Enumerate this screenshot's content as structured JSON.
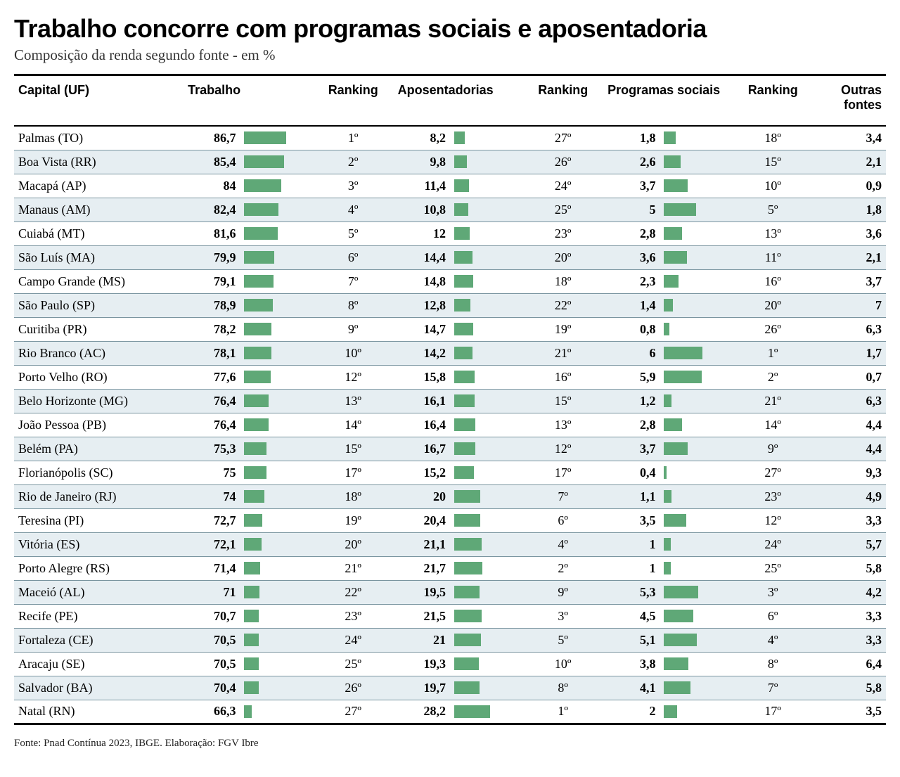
{
  "title": "Trabalho concorre com programas sociais e aposentadoria",
  "subtitle": "Composição da renda segundo fonte - em %",
  "columns": {
    "capital": "Capital (UF)",
    "trabalho": "Trabalho",
    "ranking": "Ranking",
    "aposentadorias": "Aposentadorias",
    "programas_sociais": "Programas sociais",
    "outras_fontes": "Outras fontes"
  },
  "style": {
    "bar_color": "#5fa877",
    "row_alt_bg": "#e6eef2",
    "row_bg": "#ffffff",
    "row_border": "#7a95a0",
    "bar_maxes": {
      "trabalho": 100,
      "apos": 50,
      "prog": 10
    },
    "title_fontsize": 36,
    "subtitle_fontsize": 21,
    "header_fontsize": 18,
    "cell_fontsize": 18
  },
  "rows": [
    {
      "capital": "Palmas (TO)",
      "trabalho": "86,7",
      "trabalho_n": 86.7,
      "t_rank": "1º",
      "apos": "8,2",
      "apos_n": 8.2,
      "a_rank": "27º",
      "prog": "1,8",
      "prog_n": 1.8,
      "p_rank": "18º",
      "outras": "3,4"
    },
    {
      "capital": "Boa Vista (RR)",
      "trabalho": "85,4",
      "trabalho_n": 85.4,
      "t_rank": "2º",
      "apos": "9,8",
      "apos_n": 9.8,
      "a_rank": "26º",
      "prog": "2,6",
      "prog_n": 2.6,
      "p_rank": "15º",
      "outras": "2,1"
    },
    {
      "capital": "Macapá (AP)",
      "trabalho": "84",
      "trabalho_n": 84,
      "t_rank": "3º",
      "apos": "11,4",
      "apos_n": 11.4,
      "a_rank": "24º",
      "prog": "3,7",
      "prog_n": 3.7,
      "p_rank": "10º",
      "outras": "0,9"
    },
    {
      "capital": "Manaus (AM)",
      "trabalho": "82,4",
      "trabalho_n": 82.4,
      "t_rank": "4º",
      "apos": "10,8",
      "apos_n": 10.8,
      "a_rank": "25º",
      "prog": "5",
      "prog_n": 5,
      "p_rank": "5º",
      "outras": "1,8"
    },
    {
      "capital": "Cuiabá (MT)",
      "trabalho": "81,6",
      "trabalho_n": 81.6,
      "t_rank": "5º",
      "apos": "12",
      "apos_n": 12,
      "a_rank": "23º",
      "prog": "2,8",
      "prog_n": 2.8,
      "p_rank": "13º",
      "outras": "3,6"
    },
    {
      "capital": "São Luís (MA)",
      "trabalho": "79,9",
      "trabalho_n": 79.9,
      "t_rank": "6º",
      "apos": "14,4",
      "apos_n": 14.4,
      "a_rank": "20º",
      "prog": "3,6",
      "prog_n": 3.6,
      "p_rank": "11º",
      "outras": "2,1"
    },
    {
      "capital": "Campo Grande (MS)",
      "trabalho": "79,1",
      "trabalho_n": 79.1,
      "t_rank": "7º",
      "apos": "14,8",
      "apos_n": 14.8,
      "a_rank": "18º",
      "prog": "2,3",
      "prog_n": 2.3,
      "p_rank": "16º",
      "outras": "3,7"
    },
    {
      "capital": "São Paulo (SP)",
      "trabalho": "78,9",
      "trabalho_n": 78.9,
      "t_rank": "8º",
      "apos": "12,8",
      "apos_n": 12.8,
      "a_rank": "22º",
      "prog": "1,4",
      "prog_n": 1.4,
      "p_rank": "20º",
      "outras": "7"
    },
    {
      "capital": "Curitiba (PR)",
      "trabalho": "78,2",
      "trabalho_n": 78.2,
      "t_rank": "9º",
      "apos": "14,7",
      "apos_n": 14.7,
      "a_rank": "19º",
      "prog": "0,8",
      "prog_n": 0.8,
      "p_rank": "26º",
      "outras": "6,3"
    },
    {
      "capital": "Rio Branco (AC)",
      "trabalho": "78,1",
      "trabalho_n": 78.1,
      "t_rank": "10º",
      "apos": "14,2",
      "apos_n": 14.2,
      "a_rank": "21º",
      "prog": "6",
      "prog_n": 6,
      "p_rank": "1º",
      "outras": "1,7"
    },
    {
      "capital": "Porto Velho (RO)",
      "trabalho": "77,6",
      "trabalho_n": 77.6,
      "t_rank": "12º",
      "apos": "15,8",
      "apos_n": 15.8,
      "a_rank": "16º",
      "prog": "5,9",
      "prog_n": 5.9,
      "p_rank": "2º",
      "outras": "0,7"
    },
    {
      "capital": "Belo Horizonte (MG)",
      "trabalho": "76,4",
      "trabalho_n": 76.4,
      "t_rank": "13º",
      "apos": "16,1",
      "apos_n": 16.1,
      "a_rank": "15º",
      "prog": "1,2",
      "prog_n": 1.2,
      "p_rank": "21º",
      "outras": "6,3"
    },
    {
      "capital": "João Pessoa (PB)",
      "trabalho": "76,4",
      "trabalho_n": 76.4,
      "t_rank": "14º",
      "apos": "16,4",
      "apos_n": 16.4,
      "a_rank": "13º",
      "prog": "2,8",
      "prog_n": 2.8,
      "p_rank": "14º",
      "outras": "4,4"
    },
    {
      "capital": "Belém (PA)",
      "trabalho": "75,3",
      "trabalho_n": 75.3,
      "t_rank": "15º",
      "apos": "16,7",
      "apos_n": 16.7,
      "a_rank": "12º",
      "prog": "3,7",
      "prog_n": 3.7,
      "p_rank": "9º",
      "outras": "4,4"
    },
    {
      "capital": "Florianópolis (SC)",
      "trabalho": "75",
      "trabalho_n": 75,
      "t_rank": "17º",
      "apos": "15,2",
      "apos_n": 15.2,
      "a_rank": "17º",
      "prog": "0,4",
      "prog_n": 0.4,
      "p_rank": "27º",
      "outras": "9,3"
    },
    {
      "capital": "Rio de Janeiro (RJ)",
      "trabalho": "74",
      "trabalho_n": 74,
      "t_rank": "18º",
      "apos": "20",
      "apos_n": 20,
      "a_rank": "7º",
      "prog": "1,1",
      "prog_n": 1.1,
      "p_rank": "23º",
      "outras": "4,9"
    },
    {
      "capital": "Teresina (PI)",
      "trabalho": "72,7",
      "trabalho_n": 72.7,
      "t_rank": "19º",
      "apos": "20,4",
      "apos_n": 20.4,
      "a_rank": "6º",
      "prog": "3,5",
      "prog_n": 3.5,
      "p_rank": "12º",
      "outras": "3,3"
    },
    {
      "capital": "Vitória (ES)",
      "trabalho": "72,1",
      "trabalho_n": 72.1,
      "t_rank": "20º",
      "apos": "21,1",
      "apos_n": 21.1,
      "a_rank": "4º",
      "prog": "1",
      "prog_n": 1,
      "p_rank": "24º",
      "outras": "5,7"
    },
    {
      "capital": "Porto Alegre (RS)",
      "trabalho": "71,4",
      "trabalho_n": 71.4,
      "t_rank": "21º",
      "apos": "21,7",
      "apos_n": 21.7,
      "a_rank": "2º",
      "prog": "1",
      "prog_n": 1,
      "p_rank": "25º",
      "outras": "5,8"
    },
    {
      "capital": "Maceió (AL)",
      "trabalho": "71",
      "trabalho_n": 71,
      "t_rank": "22º",
      "apos": "19,5",
      "apos_n": 19.5,
      "a_rank": "9º",
      "prog": "5,3",
      "prog_n": 5.3,
      "p_rank": "3º",
      "outras": "4,2"
    },
    {
      "capital": "Recife (PE)",
      "trabalho": "70,7",
      "trabalho_n": 70.7,
      "t_rank": "23º",
      "apos": "21,5",
      "apos_n": 21.5,
      "a_rank": "3º",
      "prog": "4,5",
      "prog_n": 4.5,
      "p_rank": "6º",
      "outras": "3,3"
    },
    {
      "capital": "Fortaleza (CE)",
      "trabalho": "70,5",
      "trabalho_n": 70.5,
      "t_rank": "24º",
      "apos": "21",
      "apos_n": 21,
      "a_rank": "5º",
      "prog": "5,1",
      "prog_n": 5.1,
      "p_rank": "4º",
      "outras": "3,3"
    },
    {
      "capital": "Aracaju (SE)",
      "trabalho": "70,5",
      "trabalho_n": 70.5,
      "t_rank": "25º",
      "apos": "19,3",
      "apos_n": 19.3,
      "a_rank": "10º",
      "prog": "3,8",
      "prog_n": 3.8,
      "p_rank": "8º",
      "outras": "6,4"
    },
    {
      "capital": "Salvador (BA)",
      "trabalho": "70,4",
      "trabalho_n": 70.4,
      "t_rank": "26º",
      "apos": "19,7",
      "apos_n": 19.7,
      "a_rank": "8º",
      "prog": "4,1",
      "prog_n": 4.1,
      "p_rank": "7º",
      "outras": "5,8"
    },
    {
      "capital": "Natal (RN)",
      "trabalho": "66,3",
      "trabalho_n": 66.3,
      "t_rank": "27º",
      "apos": "28,2",
      "apos_n": 28.2,
      "a_rank": "1º",
      "prog": "2",
      "prog_n": 2,
      "p_rank": "17º",
      "outras": "3,5"
    }
  ],
  "source": "Fonte: Pnad Contínua 2023, IBGE. Elaboração: FGV Ibre"
}
